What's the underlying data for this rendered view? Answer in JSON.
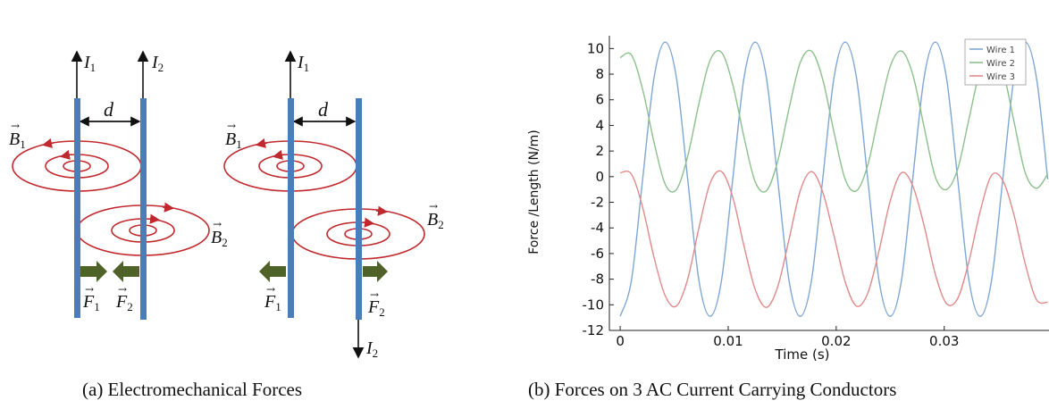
{
  "figure_a": {
    "caption": "(a) Electromechanical Forces",
    "left_panel": {
      "current_1": "I",
      "current_1_sub": "1",
      "current_2": "I",
      "current_2_sub": "2",
      "distance": "d",
      "field_1": "B",
      "field_1_sub": "1",
      "field_2": "B",
      "field_2_sub": "2",
      "force_1": "F",
      "force_1_sub": "1",
      "force_2": "F",
      "force_2_sub": "2"
    },
    "right_panel": {
      "current_1": "I",
      "current_1_sub": "1",
      "current_2": "I",
      "current_2_sub": "2",
      "distance": "d",
      "field_1": "B",
      "field_1_sub": "1",
      "field_2": "B",
      "field_2_sub": "2",
      "force_1": "F",
      "force_1_sub": "1",
      "force_2": "F",
      "force_2_sub": "2"
    },
    "colors": {
      "wire": "#4a7ebb",
      "field": "#c0282d",
      "force": "#4f6228"
    }
  },
  "figure_b": {
    "caption": "(b) Forces on 3 AC Current Carrying Conductors"
  },
  "chart_data": {
    "type": "line",
    "xlabel": "Time (s)",
    "ylabel": "Force /Length (N/m)",
    "xlim": [
      -0.001,
      0.0397
    ],
    "ylim": [
      -12,
      11
    ],
    "xticks": [
      0,
      0.01,
      0.02,
      0.03
    ],
    "xtick_labels": [
      "0",
      "0.01",
      "0.02",
      "0.03"
    ],
    "yticks": [
      -12,
      -10,
      -8,
      -6,
      -4,
      -2,
      0,
      2,
      4,
      6,
      8,
      10
    ],
    "ytick_labels": [
      "-12",
      "-10",
      "-8",
      "-6",
      "-4",
      "-2",
      "0",
      "2",
      "4",
      "6",
      "8",
      "10"
    ],
    "legend_position": "top-right",
    "series": [
      {
        "name": "Wire 1",
        "color": "#7ea6d4",
        "x": [
          0,
          0.00104,
          0.00208,
          0.00313,
          0.00417,
          0.00521,
          0.00625,
          0.00729,
          0.00833,
          0.00938,
          0.01042,
          0.01146,
          0.0125,
          0.01354,
          0.01458,
          0.01563,
          0.01667,
          0.01771,
          0.01875,
          0.01979,
          0.02083,
          0.02188,
          0.02292,
          0.02396,
          0.025,
          0.02604,
          0.02708,
          0.02813,
          0.02917,
          0.03021,
          0.03125,
          0.03229,
          0.03333,
          0.03438,
          0.03542,
          0.03646,
          0.0375,
          0.03854,
          0.03958
        ],
        "y": [
          -10.9,
          -8.1,
          -0.2,
          7.7,
          10.5,
          7.7,
          -0.2,
          -8.1,
          -10.9,
          -8.1,
          -0.2,
          7.7,
          10.5,
          7.7,
          -0.2,
          -8.1,
          -10.9,
          -8.1,
          -0.2,
          7.7,
          10.5,
          7.7,
          -0.2,
          -8.1,
          -10.9,
          -8.1,
          -0.2,
          7.7,
          10.5,
          7.7,
          -0.2,
          -8.1,
          -10.9,
          -8.1,
          -0.2,
          7.7,
          10.5,
          7.7,
          -0.2
        ]
      },
      {
        "name": "Wire 2",
        "color": "#8cc08c",
        "x": [
          0,
          0.00104,
          0.00208,
          0.00313,
          0.00417,
          0.00521,
          0.00625,
          0.00729,
          0.00833,
          0.00938,
          0.01042,
          0.01146,
          0.0125,
          0.01354,
          0.01458,
          0.01563,
          0.01667,
          0.01771,
          0.01875,
          0.01979,
          0.02083,
          0.02188,
          0.02292,
          0.02396,
          0.025,
          0.02604,
          0.02708,
          0.02813,
          0.02917,
          0.03021,
          0.03125,
          0.03229,
          0.03333,
          0.03438,
          0.03542,
          0.03646,
          0.0375,
          0.03854,
          0.03958
        ],
        "y": [
          9.3,
          9.5,
          6.8,
          2.7,
          -0.6,
          -1.0,
          1.6,
          5.7,
          9.1,
          9.7,
          7.2,
          3.1,
          -0.4,
          -1.1,
          1.2,
          5.3,
          8.9,
          9.8,
          7.6,
          3.5,
          -0.2,
          -1.1,
          0.9,
          4.9,
          8.6,
          9.8,
          8.0,
          3.9,
          0.0,
          -1.0,
          0.6,
          4.5,
          8.3,
          9.8,
          8.3,
          4.3,
          0.3,
          -0.9,
          0.2
        ]
      },
      {
        "name": "Wire 3",
        "color": "#e08a8a",
        "x": [
          0,
          0.00104,
          0.00208,
          0.00313,
          0.00417,
          0.00521,
          0.00625,
          0.00729,
          0.00833,
          0.00938,
          0.01042,
          0.01146,
          0.0125,
          0.01354,
          0.01458,
          0.01563,
          0.01667,
          0.01771,
          0.01875,
          0.01979,
          0.02083,
          0.02188,
          0.02292,
          0.02396,
          0.025,
          0.02604,
          0.02708,
          0.02813,
          0.02917,
          0.03021,
          0.03125,
          0.03229,
          0.03333,
          0.03438,
          0.03542,
          0.03646,
          0.0375,
          0.03854,
          0.03958
        ],
        "y": [
          0.3,
          0.2,
          -2.4,
          -6.3,
          -9.3,
          -10.1,
          -8.0,
          -4.0,
          -0.5,
          0.4,
          -1.6,
          -5.4,
          -8.8,
          -10.2,
          -8.6,
          -4.9,
          -1.1,
          0.4,
          -1.2,
          -4.6,
          -8.2,
          -10.1,
          -9.1,
          -5.8,
          -1.9,
          0.3,
          -0.7,
          -3.8,
          -7.6,
          -9.9,
          -9.5,
          -6.6,
          -2.7,
          0.1,
          -0.3,
          -3.0,
          -6.8,
          -9.6,
          -9.8
        ]
      }
    ]
  }
}
